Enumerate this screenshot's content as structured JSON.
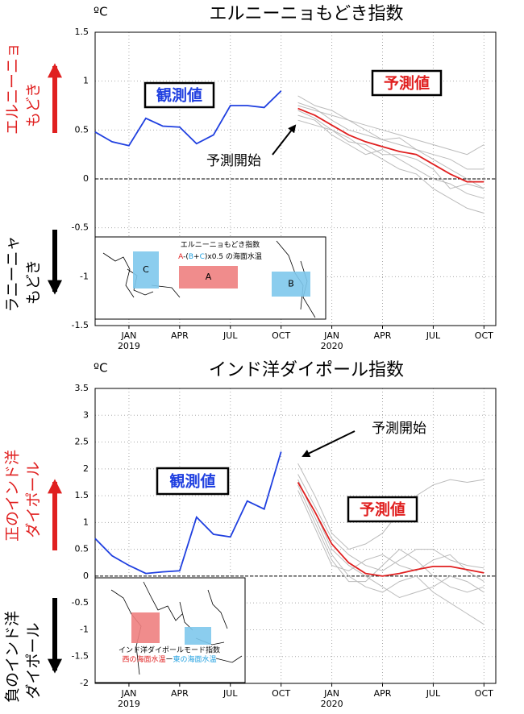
{
  "chart_data": [
    {
      "type": "line",
      "title": "エルニーニョもどき指数",
      "unit_label": "ºC",
      "x": [
        -2,
        -1,
        0,
        1,
        2,
        3,
        4,
        5,
        6,
        7,
        8,
        9,
        10,
        11,
        12,
        13,
        14,
        15,
        16,
        17,
        18,
        19,
        20,
        21
      ],
      "xlim": [
        -2,
        21.7
      ],
      "xticks": [
        {
          "value": 0,
          "label": "JAN"
        },
        {
          "value": 3,
          "label": "APR"
        },
        {
          "value": 6,
          "label": "JUL"
        },
        {
          "value": 9,
          "label": "OCT"
        },
        {
          "value": 12,
          "label": "JAN"
        },
        {
          "value": 15,
          "label": "APR"
        },
        {
          "value": 18,
          "label": "JUL"
        },
        {
          "value": 21,
          "label": "OCT"
        }
      ],
      "year_labels": [
        {
          "value": 0,
          "label": "2019"
        },
        {
          "value": 12,
          "label": "2020"
        }
      ],
      "ylim": [
        -1.5,
        1.5
      ],
      "yticks": [
        -1.5,
        -1,
        -0.5,
        0,
        0.5,
        1,
        1.5
      ],
      "grid": true,
      "zero_line": true,
      "series": [
        {
          "color": "#bbbbbb",
          "values": [
            null,
            null,
            null,
            null,
            null,
            null,
            null,
            null,
            null,
            null,
            null,
            null,
            0.78,
            0.72,
            0.6,
            0.5,
            0.45,
            0.4,
            0.35,
            0.3,
            0.2,
            0.1,
            0.0,
            -0.1
          ]
        },
        {
          "color": "#bbbbbb",
          "values": [
            null,
            null,
            null,
            null,
            null,
            null,
            null,
            null,
            null,
            null,
            null,
            null,
            0.7,
            0.62,
            0.5,
            0.42,
            0.3,
            0.2,
            0.1,
            0.05,
            -0.1,
            -0.2,
            -0.3,
            -0.35
          ]
        },
        {
          "color": "#bbbbbb",
          "values": [
            null,
            null,
            null,
            null,
            null,
            null,
            null,
            null,
            null,
            null,
            null,
            null,
            0.85,
            0.75,
            0.7,
            0.6,
            0.55,
            0.5,
            0.45,
            0.4,
            0.35,
            0.3,
            0.25,
            0.35
          ]
        },
        {
          "color": "#bbbbbb",
          "values": [
            null,
            null,
            null,
            null,
            null,
            null,
            null,
            null,
            null,
            null,
            null,
            null,
            0.65,
            0.6,
            0.45,
            0.35,
            0.25,
            0.3,
            0.2,
            0.1,
            0.0,
            -0.05,
            -0.15,
            -0.2
          ]
        },
        {
          "color": "#bbbbbb",
          "values": [
            null,
            null,
            null,
            null,
            null,
            null,
            null,
            null,
            null,
            null,
            null,
            null,
            0.75,
            0.7,
            0.65,
            0.6,
            0.5,
            0.4,
            0.42,
            0.3,
            0.25,
            0.2,
            0.1,
            0.1
          ]
        },
        {
          "color": "#bbbbbb",
          "values": [
            null,
            null,
            null,
            null,
            null,
            null,
            null,
            null,
            null,
            null,
            null,
            null,
            0.6,
            0.55,
            0.5,
            0.38,
            0.35,
            0.25,
            0.25,
            0.2,
            0.1,
            -0.1,
            -0.05,
            -0.1
          ]
        },
        {
          "name": "観測値",
          "color": "#2040e0",
          "values": [
            0.48,
            0.38,
            0.34,
            0.62,
            0.54,
            0.53,
            0.36,
            0.45,
            0.75,
            0.75,
            0.73,
            0.9,
            null,
            null,
            null,
            null,
            null,
            null,
            null,
            null,
            null,
            null,
            null,
            null
          ]
        },
        {
          "name": "予測値",
          "color": "#e02020",
          "values": [
            null,
            null,
            null,
            null,
            null,
            null,
            null,
            null,
            null,
            null,
            null,
            null,
            0.72,
            0.65,
            0.55,
            0.45,
            0.38,
            0.33,
            0.28,
            0.25,
            0.15,
            0.05,
            -0.03,
            -0.03
          ]
        }
      ],
      "start_label": "予測開始",
      "side_labels": {
        "positive": [
          "エルニーニョ",
          "もどき"
        ],
        "negative": [
          "ラニーニャ",
          "もどき"
        ]
      },
      "inset": {
        "title": "エルニーニョもどき指数",
        "formula": [
          {
            "text": "A",
            "color": "#e02020"
          },
          {
            "text": "-(",
            "color": "#000000"
          },
          {
            "text": "B",
            "color": "#20a0e0"
          },
          {
            "text": "+",
            "color": "#000000"
          },
          {
            "text": "C",
            "color": "#20a0e0"
          },
          {
            "text": ")x0.5 の海面水温",
            "color": "#000000"
          }
        ],
        "boxes": [
          {
            "label": "C",
            "color": "#7ec8ec"
          },
          {
            "label": "A",
            "color": "#ee8080"
          },
          {
            "label": "B",
            "color": "#7ec8ec"
          }
        ]
      }
    },
    {
      "type": "line",
      "title": "インド洋ダイポール指数",
      "unit_label": "ºC",
      "x": [
        -2,
        -1,
        0,
        1,
        2,
        3,
        4,
        5,
        6,
        7,
        8,
        9,
        10,
        11,
        12,
        13,
        14,
        15,
        16,
        17,
        18,
        19,
        20,
        21
      ],
      "xlim": [
        -2,
        21.7
      ],
      "xticks": [
        {
          "value": 0,
          "label": "JAN"
        },
        {
          "value": 3,
          "label": "APR"
        },
        {
          "value": 6,
          "label": "JUL"
        },
        {
          "value": 9,
          "label": "OCT"
        },
        {
          "value": 12,
          "label": "JAN"
        },
        {
          "value": 15,
          "label": "APR"
        },
        {
          "value": 18,
          "label": "JUL"
        },
        {
          "value": 21,
          "label": "OCT"
        }
      ],
      "year_labels": [
        {
          "value": 0,
          "label": "2019"
        },
        {
          "value": 12,
          "label": "2020"
        }
      ],
      "ylim": [
        -2,
        3.5
      ],
      "yticks": [
        -2,
        -1.5,
        -1,
        -0.5,
        0,
        0.5,
        1,
        1.5,
        2,
        2.5,
        3,
        3.5
      ],
      "grid": true,
      "zero_line": true,
      "series": [
        {
          "color": "#bbbbbb",
          "values": [
            null,
            null,
            null,
            null,
            null,
            null,
            null,
            null,
            null,
            null,
            null,
            null,
            2.1,
            1.5,
            0.8,
            0.5,
            0.6,
            0.8,
            1.2,
            1.5,
            1.7,
            1.8,
            1.75,
            1.8
          ]
        },
        {
          "color": "#bbbbbb",
          "values": [
            null,
            null,
            null,
            null,
            null,
            null,
            null,
            null,
            null,
            null,
            null,
            null,
            1.8,
            1.1,
            0.4,
            0.0,
            -0.2,
            -0.3,
            -0.1,
            0.0,
            -0.3,
            -0.5,
            -0.7,
            -0.9
          ]
        },
        {
          "color": "#bbbbbb",
          "values": [
            null,
            null,
            null,
            null,
            null,
            null,
            null,
            null,
            null,
            null,
            null,
            null,
            1.7,
            1.0,
            0.3,
            -0.1,
            -0.1,
            0.2,
            0.5,
            0.3,
            0.0,
            -0.2,
            -0.3,
            -0.2
          ]
        },
        {
          "color": "#bbbbbb",
          "values": [
            null,
            null,
            null,
            null,
            null,
            null,
            null,
            null,
            null,
            null,
            null,
            null,
            1.9,
            1.3,
            0.7,
            0.4,
            0.2,
            0.1,
            0.3,
            0.5,
            0.5,
            0.3,
            0.2,
            0.15
          ]
        },
        {
          "color": "#bbbbbb",
          "values": [
            null,
            null,
            null,
            null,
            null,
            null,
            null,
            null,
            null,
            null,
            null,
            null,
            1.6,
            0.9,
            0.2,
            0.1,
            0.3,
            0.4,
            0.2,
            0.1,
            0.3,
            0.4,
            0.1,
            -0.1
          ]
        },
        {
          "color": "#bbbbbb",
          "values": [
            null,
            null,
            null,
            null,
            null,
            null,
            null,
            null,
            null,
            null,
            null,
            null,
            1.75,
            1.2,
            0.5,
            0.2,
            0.0,
            -0.2,
            -0.4,
            -0.3,
            -0.2,
            0.0,
            -0.1,
            -0.3
          ]
        },
        {
          "name": "観測値",
          "color": "#2040e0",
          "values": [
            0.7,
            0.38,
            0.2,
            0.05,
            0.08,
            0.1,
            1.1,
            0.78,
            0.73,
            1.4,
            1.25,
            2.32,
            null,
            null,
            null,
            null,
            null,
            null,
            null,
            null,
            null,
            null,
            null,
            null
          ]
        },
        {
          "name": "予測値",
          "color": "#e02020",
          "values": [
            null,
            null,
            null,
            null,
            null,
            null,
            null,
            null,
            null,
            null,
            null,
            null,
            1.75,
            1.2,
            0.6,
            0.25,
            0.05,
            0.0,
            0.05,
            0.12,
            0.18,
            0.18,
            0.12,
            0.06
          ]
        }
      ],
      "start_label": "予測開始",
      "side_labels": {
        "positive": [
          "正のインド洋",
          "ダイポール"
        ],
        "negative": [
          "負のインド洋",
          "ダイポール"
        ]
      },
      "inset": {
        "title": "インド洋ダイポールモード指数",
        "formula": [
          {
            "text": "西の海面水温",
            "color": "#e02020"
          },
          {
            "text": "ー",
            "color": "#000000"
          },
          {
            "text": "東の海面水温",
            "color": "#20a0e0"
          }
        ],
        "boxes": [
          {
            "color": "#ee8080"
          },
          {
            "color": "#7ec8ec"
          }
        ]
      }
    }
  ]
}
